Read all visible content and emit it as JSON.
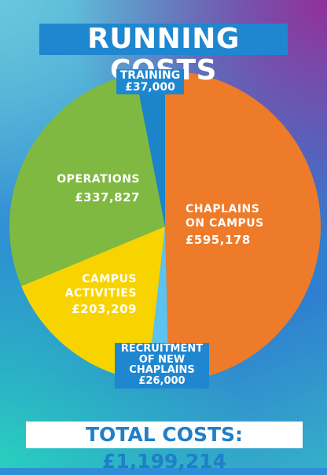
{
  "title": "RUNNING COSTS",
  "total": "TOTAL COSTS: £1,199,214",
  "colors": {
    "chaplains": "#ee7b29",
    "recruitment": "#5cc2ee",
    "activities": "#f7d400",
    "operations": "#7fb942",
    "training": "#1c84c8"
  },
  "chart_data": {
    "type": "pie",
    "title": "RUNNING COSTS",
    "slices": [
      {
        "label": "CHAPLAINS ON CAMPUS",
        "value": 595178,
        "value_label": "£595,178",
        "color_key": "chaplains"
      },
      {
        "label": "RECRUITMENT OF NEW CHAPLAINS",
        "value": 26000,
        "value_label": "£26,000",
        "color_key": "recruitment"
      },
      {
        "label": "CAMPUS ACTIVITIES",
        "value": 203209,
        "value_label": "£203,209",
        "color_key": "activities"
      },
      {
        "label": "OPERATIONS",
        "value": 337827,
        "value_label": "£337,827",
        "color_key": "operations"
      },
      {
        "label": "TRAINING",
        "value": 37000,
        "value_label": "£37,000",
        "color_key": "training"
      }
    ],
    "total_label": "TOTAL COSTS: £1,199,214"
  },
  "labels": {
    "chaplains": {
      "l1": "CHAPLAINS",
      "l2": "ON CAMPUS",
      "value": "£595,178"
    },
    "operations": {
      "l1": "OPERATIONS",
      "value": "£337,827"
    },
    "activities": {
      "l1": "CAMPUS",
      "l2": "ACTIVITIES",
      "value": "£203,209"
    },
    "training": {
      "l1": "TRAINING",
      "value": "£37,000"
    },
    "recruitment": {
      "l1": "RECRUITMENT",
      "l2": "OF NEW",
      "l3": "CHAPLAINS",
      "value": "£26,000"
    }
  }
}
